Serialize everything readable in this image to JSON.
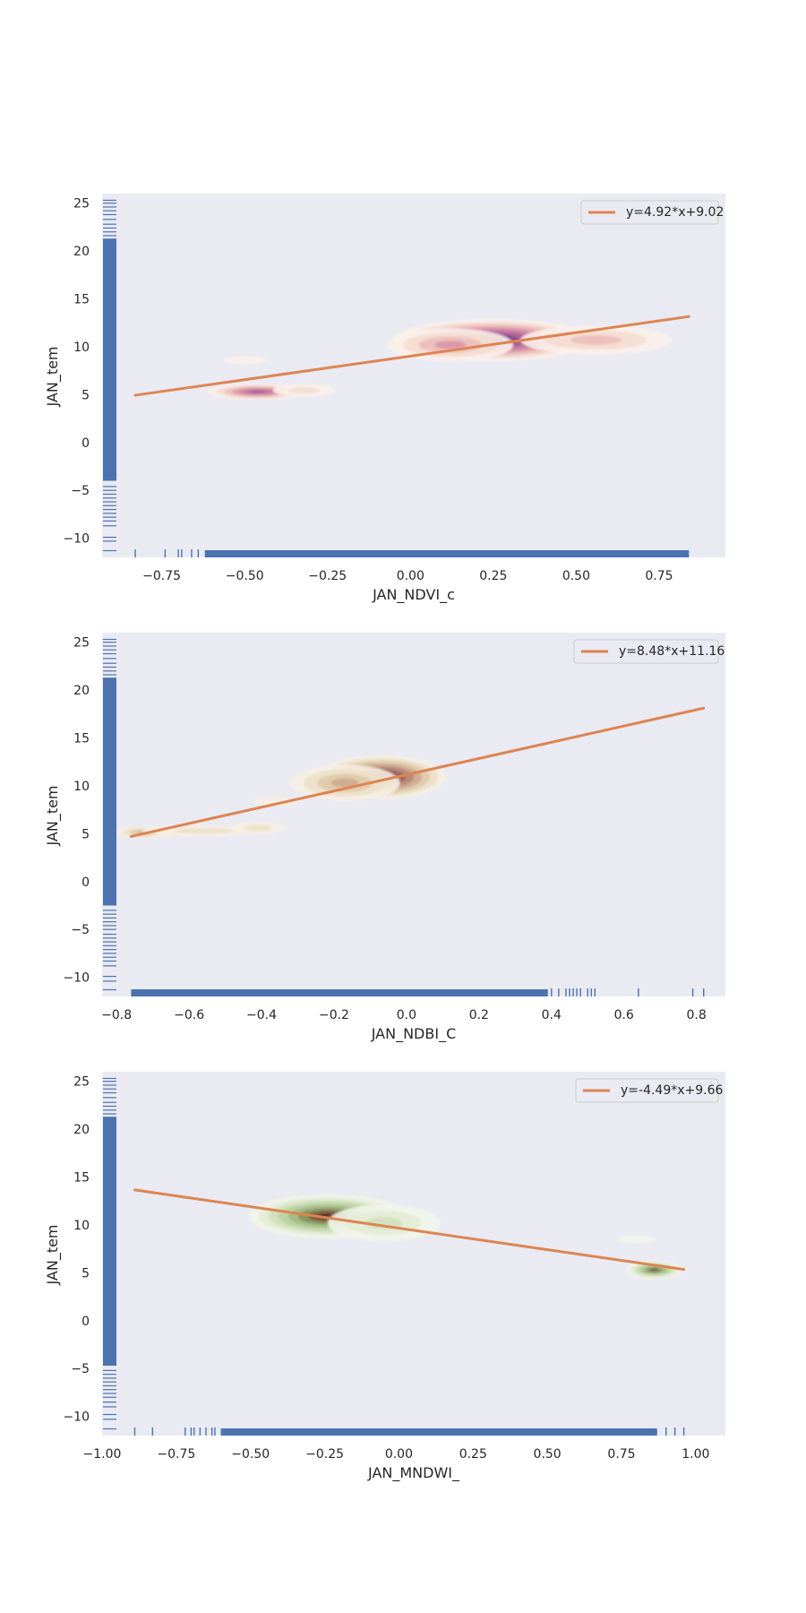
{
  "figure": {
    "background": "#ffffff",
    "axes_background": "#eaeaf2",
    "rug_color": "#4c72b0",
    "fit_color": "#dd8452"
  },
  "chart_data": [
    {
      "type": "scatter",
      "title": "",
      "xlabel": "JAN_NDVI_c",
      "ylabel": "JAN_tem",
      "xlim": [
        -0.93,
        0.95
      ],
      "ylim": [
        -12,
        26
      ],
      "xticks": [
        -0.75,
        -0.5,
        -0.25,
        0.0,
        0.25,
        0.5,
        0.75
      ],
      "xtick_labels": [
        "−0.75",
        "−0.50",
        "−0.25",
        "0.00",
        "0.25",
        "0.50",
        "0.75"
      ],
      "yticks": [
        -10,
        -5,
        0,
        5,
        10,
        15,
        20,
        25
      ],
      "ytick_labels": [
        "−10",
        "−5",
        "0",
        "5",
        "10",
        "15",
        "20",
        "25"
      ],
      "grid": false,
      "legend_position": "top-right",
      "legend": [
        "y=4.92*x+9.02"
      ],
      "fit": {
        "name": "y=4.92*x+9.02",
        "slope": 4.92,
        "intercept": 9.02,
        "x_range": [
          -0.83,
          0.84
        ]
      },
      "kde_colormap": [
        "#fbf1ea",
        "#f5dcd2",
        "#ebbdba",
        "#d996a7",
        "#c3779f",
        "#a45e96",
        "#7b4485",
        "#4e2a61"
      ],
      "kde_clusters": [
        {
          "cx": 0.25,
          "cy": 10.7,
          "sx": 0.16,
          "sy": 1.15,
          "rot": 0,
          "levels": 8
        },
        {
          "cx": 0.12,
          "cy": 10.2,
          "sx": 0.1,
          "sy": 0.9,
          "rot": 0,
          "levels": 4
        },
        {
          "cx": 0.56,
          "cy": 10.7,
          "sx": 0.12,
          "sy": 0.8,
          "rot": 0,
          "levels": 3
        },
        {
          "cx": -0.46,
          "cy": 5.3,
          "sx": 0.08,
          "sy": 0.45,
          "rot": 0,
          "levels": 6
        },
        {
          "cx": -0.32,
          "cy": 5.45,
          "sx": 0.05,
          "sy": 0.35,
          "rot": 0,
          "levels": 2
        },
        {
          "cx": -0.5,
          "cy": 8.6,
          "sx": 0.035,
          "sy": 0.22,
          "rot": 0,
          "levels": 1
        }
      ],
      "x_rug": {
        "dense_range": [
          -0.62,
          0.84
        ],
        "extra": [
          -0.83,
          -0.74,
          -0.7,
          -0.69,
          -0.66,
          -0.64
        ]
      },
      "y_rug": {
        "dense_range": [
          -4.0,
          21.3
        ],
        "extra": [
          -11.3,
          -10.3,
          -9.9,
          -8.7,
          -8.2,
          -7.8,
          -7.4,
          -7.0,
          -6.6,
          -6.2,
          -5.8,
          -5.4,
          -5.0,
          -4.6,
          21.6,
          22.0,
          22.4,
          22.8,
          23.3,
          23.8,
          24.2,
          24.6,
          25.0,
          25.3
        ]
      }
    },
    {
      "type": "scatter",
      "title": "",
      "xlabel": "JAN_NDBI_C",
      "ylabel": "JAN_tem",
      "xlim": [
        -0.84,
        0.88
      ],
      "ylim": [
        -12,
        26
      ],
      "xticks": [
        -0.8,
        -0.6,
        -0.4,
        -0.2,
        0.0,
        0.2,
        0.4,
        0.6,
        0.8
      ],
      "xtick_labels": [
        "−0.8",
        "−0.6",
        "−0.4",
        "−0.2",
        "0.0",
        "0.2",
        "0.4",
        "0.6",
        "0.8"
      ],
      "yticks": [
        -10,
        -5,
        0,
        5,
        10,
        15,
        20,
        25
      ],
      "ytick_labels": [
        "−10",
        "−5",
        "0",
        "5",
        "10",
        "15",
        "20",
        "25"
      ],
      "grid": false,
      "legend_position": "top-right",
      "legend": [
        "y=8.48*x+11.16"
      ],
      "fit": {
        "name": "y=8.48*x+11.16",
        "slope": 8.48,
        "intercept": 11.16,
        "x_range": [
          -0.76,
          0.82
        ]
      },
      "kde_colormap": [
        "#f6f0e3",
        "#ece0c8",
        "#dfc9aa",
        "#cdaa8f",
        "#b78576",
        "#9a5f61",
        "#7a3e4f",
        "#55233d"
      ],
      "kde_clusters": [
        {
          "cx": -0.07,
          "cy": 10.9,
          "sx": 0.095,
          "sy": 1.2,
          "rot": 0,
          "levels": 8
        },
        {
          "cx": -0.17,
          "cy": 10.3,
          "sx": 0.08,
          "sy": 1.0,
          "rot": 0,
          "levels": 4
        },
        {
          "cx": -0.72,
          "cy": 5.15,
          "sx": 0.045,
          "sy": 0.32,
          "rot": 0,
          "levels": 4
        },
        {
          "cx": -0.56,
          "cy": 5.3,
          "sx": 0.09,
          "sy": 0.3,
          "rot": 0,
          "levels": 2
        },
        {
          "cx": -0.41,
          "cy": 5.6,
          "sx": 0.04,
          "sy": 0.35,
          "rot": 0,
          "levels": 2
        },
        {
          "cx": -0.36,
          "cy": 8.4,
          "sx": 0.035,
          "sy": 0.25,
          "rot": 0,
          "levels": 1
        }
      ],
      "x_rug": {
        "dense_range": [
          -0.76,
          0.39
        ],
        "extra": [
          0.4,
          0.42,
          0.44,
          0.45,
          0.46,
          0.47,
          0.48,
          0.5,
          0.51,
          0.52,
          0.64,
          0.79,
          0.82
        ]
      },
      "y_rug": {
        "dense_range": [
          -2.5,
          21.3
        ],
        "extra": [
          -11.3,
          -10.4,
          -9.9,
          -8.8,
          -8.3,
          -7.9,
          -7.5,
          -7.1,
          -6.7,
          -6.3,
          -5.9,
          -5.5,
          -5.0,
          -4.6,
          -4.2,
          -3.8,
          -3.4,
          -3.0,
          21.6,
          22.0,
          22.4,
          22.8,
          23.3,
          23.8,
          24.2,
          24.6,
          25.0,
          25.3
        ]
      }
    },
    {
      "type": "scatter",
      "title": "",
      "xlabel": "JAN_MNDWI_",
      "ylabel": "JAN_tem",
      "xlim": [
        -1.0,
        1.1
      ],
      "ylim": [
        -12,
        26
      ],
      "xticks": [
        -1.0,
        -0.75,
        -0.5,
        -0.25,
        0.0,
        0.25,
        0.5,
        0.75,
        1.0
      ],
      "xtick_labels": [
        "−1.00",
        "−0.75",
        "−0.50",
        "−0.25",
        "0.00",
        "0.25",
        "0.50",
        "0.75",
        "1.00"
      ],
      "yticks": [
        -10,
        -5,
        0,
        5,
        10,
        15,
        20,
        25
      ],
      "ytick_labels": [
        "−10",
        "−5",
        "0",
        "5",
        "10",
        "15",
        "20",
        "25"
      ],
      "grid": false,
      "legend_position": "top-right",
      "legend": [
        "y=-4.49*x+9.66"
      ],
      "fit": {
        "name": "y=-4.49*x+9.66",
        "slope": -4.49,
        "intercept": 9.66,
        "x_range": [
          -0.89,
          0.96
        ]
      },
      "kde_colormap": [
        "#f2f5ea",
        "#e3ecd5",
        "#cfe0bb",
        "#b8d0a0",
        "#9dbb84",
        "#8a8f5c",
        "#7a5a3c",
        "#5a2a23"
      ],
      "kde_clusters": [
        {
          "cx": -0.24,
          "cy": 10.9,
          "sx": 0.14,
          "sy": 1.2,
          "rot": 0,
          "levels": 8
        },
        {
          "cx": -0.05,
          "cy": 10.2,
          "sx": 0.1,
          "sy": 1.0,
          "rot": 0,
          "levels": 3
        },
        {
          "cx": 0.86,
          "cy": 5.3,
          "sx": 0.05,
          "sy": 0.5,
          "rot": 0,
          "levels": 7
        },
        {
          "cx": 0.8,
          "cy": 8.5,
          "sx": 0.035,
          "sy": 0.22,
          "rot": 0,
          "levels": 1
        }
      ],
      "x_rug": {
        "dense_range": [
          -0.6,
          0.87
        ],
        "extra": [
          -0.89,
          -0.83,
          -0.72,
          -0.7,
          -0.69,
          -0.67,
          -0.65,
          -0.63,
          -0.62,
          0.9,
          0.93,
          0.96
        ]
      },
      "y_rug": {
        "dense_range": [
          -4.7,
          21.3
        ],
        "extra": [
          -11.3,
          -10.3,
          -9.8,
          -9.0,
          -8.5,
          -8.0,
          -7.6,
          -7.2,
          -6.8,
          -6.4,
          -6.0,
          -5.6,
          -5.2,
          21.6,
          22.0,
          22.4,
          22.8,
          23.3,
          23.8,
          24.2,
          24.6,
          25.0,
          25.3
        ]
      }
    }
  ]
}
